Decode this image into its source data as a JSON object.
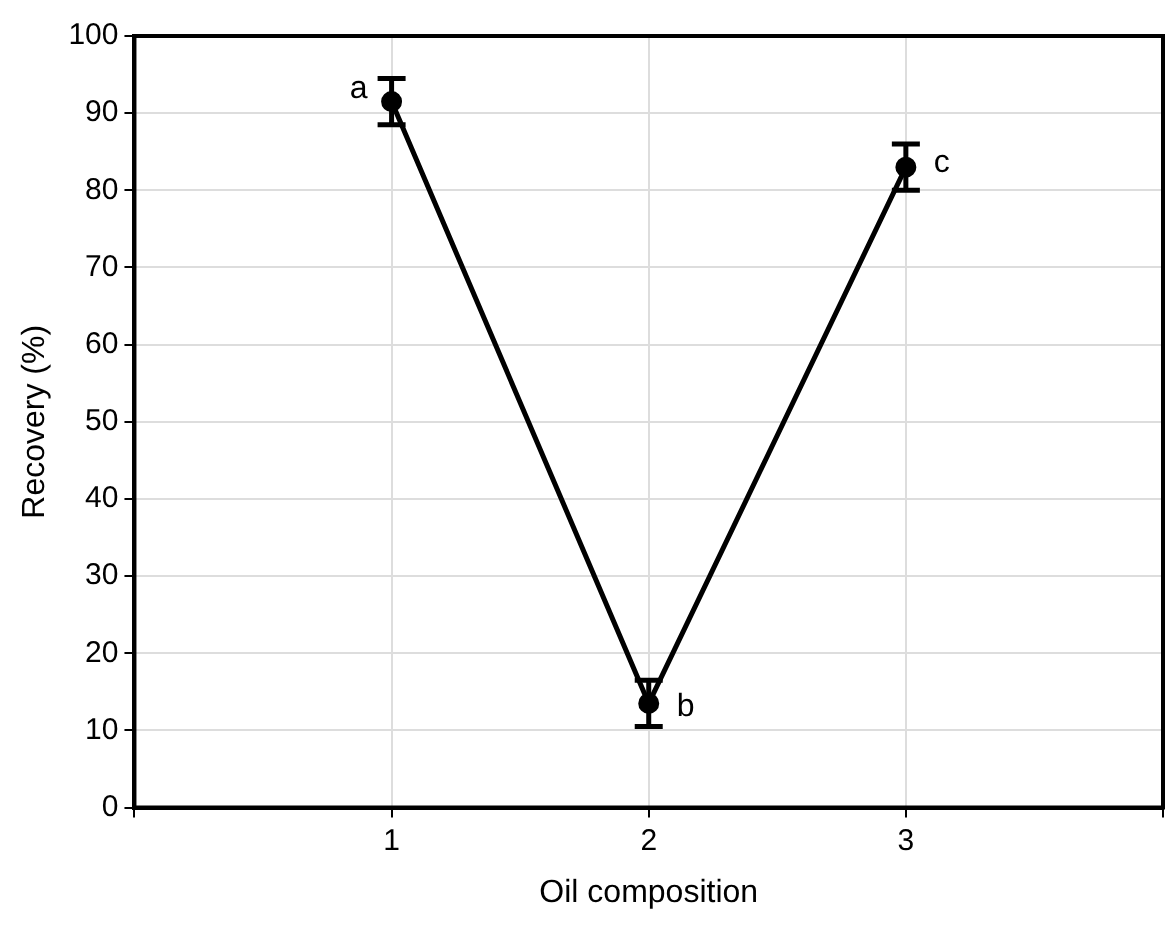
{
  "chart_data": {
    "type": "line",
    "xlabel": "Oil composition",
    "ylabel": "Recovery (%)",
    "x": [
      1,
      2,
      3
    ],
    "series": [
      {
        "color": "#000000",
        "values": [
          91.5,
          13.5,
          83
        ],
        "errors": [
          3,
          3,
          3
        ]
      }
    ],
    "xlim": [
      0,
      4
    ],
    "xticks": [
      {
        "value": 0,
        "label": null
      },
      1,
      2,
      3,
      {
        "value": 4,
        "label": null
      }
    ],
    "ylim": [
      0,
      100
    ],
    "yticks": [
      0,
      10,
      20,
      30,
      40,
      50,
      60,
      70,
      80,
      90,
      100
    ],
    "grid": true,
    "marker": "circle",
    "line_style": "solid",
    "annotations": [
      {
        "text": "a",
        "x": 1,
        "y": 91.5
      },
      {
        "text": "b",
        "x": 2,
        "y": 13.5
      },
      {
        "text": "c",
        "x": 3,
        "y": 83
      }
    ]
  }
}
